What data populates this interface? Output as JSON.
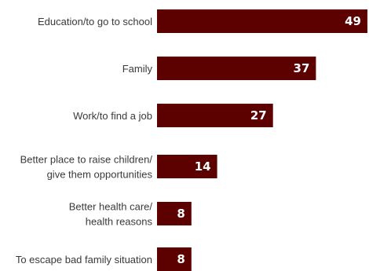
{
  "colors": {
    "bar": "#5c0000",
    "label_text": "#3a3a3a",
    "value_text": "#ffffff",
    "background": "#ffffff"
  },
  "chart_data": {
    "type": "bar",
    "orientation": "horizontal",
    "categories": [
      [
        "Education/to go to school"
      ],
      [
        "Family"
      ],
      [
        "Work/to find a job"
      ],
      [
        "Better place to raise children/",
        "give them opportunities"
      ],
      [
        "Better health care/",
        "health reasons"
      ],
      [
        "To escape bad family situation"
      ]
    ],
    "values": [
      49,
      37,
      27,
      14,
      8,
      8
    ],
    "value_labels": [
      "49",
      "37",
      "27",
      "14",
      "8",
      "8"
    ],
    "xlim": [
      0,
      49
    ],
    "grid": false,
    "legend": "none"
  }
}
